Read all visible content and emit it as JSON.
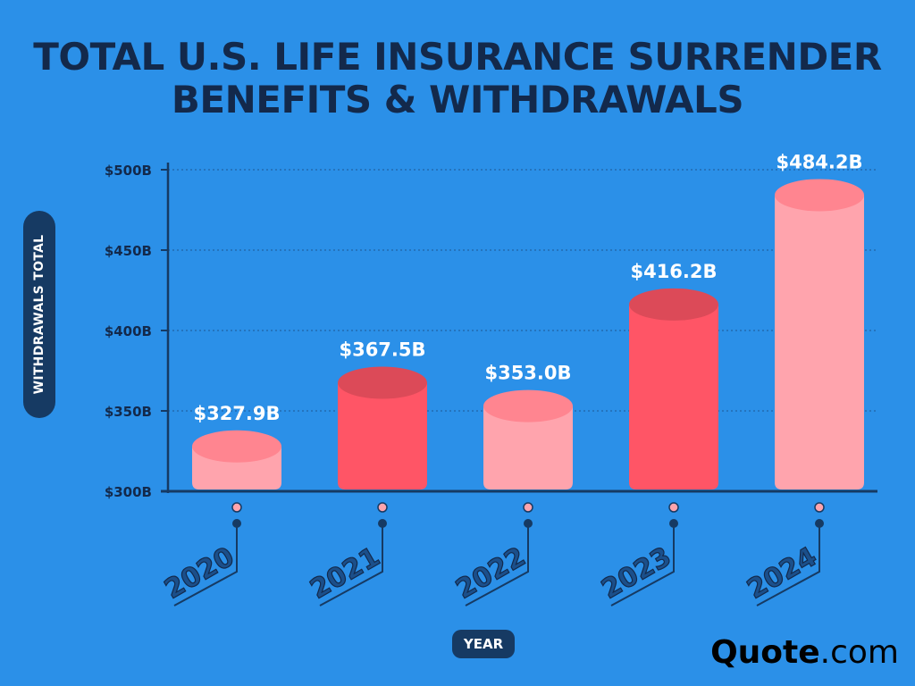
{
  "title": {
    "line1": "TOTAL U.S. LIFE INSURANCE SURRENDER",
    "line2": "BENEFITS & WITHDRAWALS"
  },
  "brand": {
    "name_bold": "Quote",
    "name_suffix": ".com"
  },
  "colors": {
    "background": "#2b90e8",
    "navy": "#163a63",
    "bar_light": "#ffa4ad",
    "bar_light_top": "#ff8590",
    "bar_dark": "#ff5566",
    "bar_dark_top": "#dc4a58"
  },
  "chart_data": {
    "type": "bar",
    "categories": [
      "2020",
      "2021",
      "2022",
      "2023",
      "2024"
    ],
    "values": [
      327.9,
      367.5,
      353.0,
      416.2,
      484.2
    ],
    "value_labels": [
      "$327.9B",
      "$367.5B",
      "$353.0B",
      "$416.2B",
      "$484.2B"
    ],
    "ylabel": "WITHDRAWALS TOTAL",
    "xlabel": "YEAR",
    "ylim": [
      300,
      500
    ],
    "yticks": [
      300,
      350,
      400,
      450,
      500
    ],
    "ytick_labels": [
      "$300B",
      "$350B",
      "$400B",
      "$450B",
      "$500B"
    ],
    "grid": true,
    "bar_style": [
      "light",
      "dark",
      "light",
      "dark",
      "light"
    ]
  }
}
